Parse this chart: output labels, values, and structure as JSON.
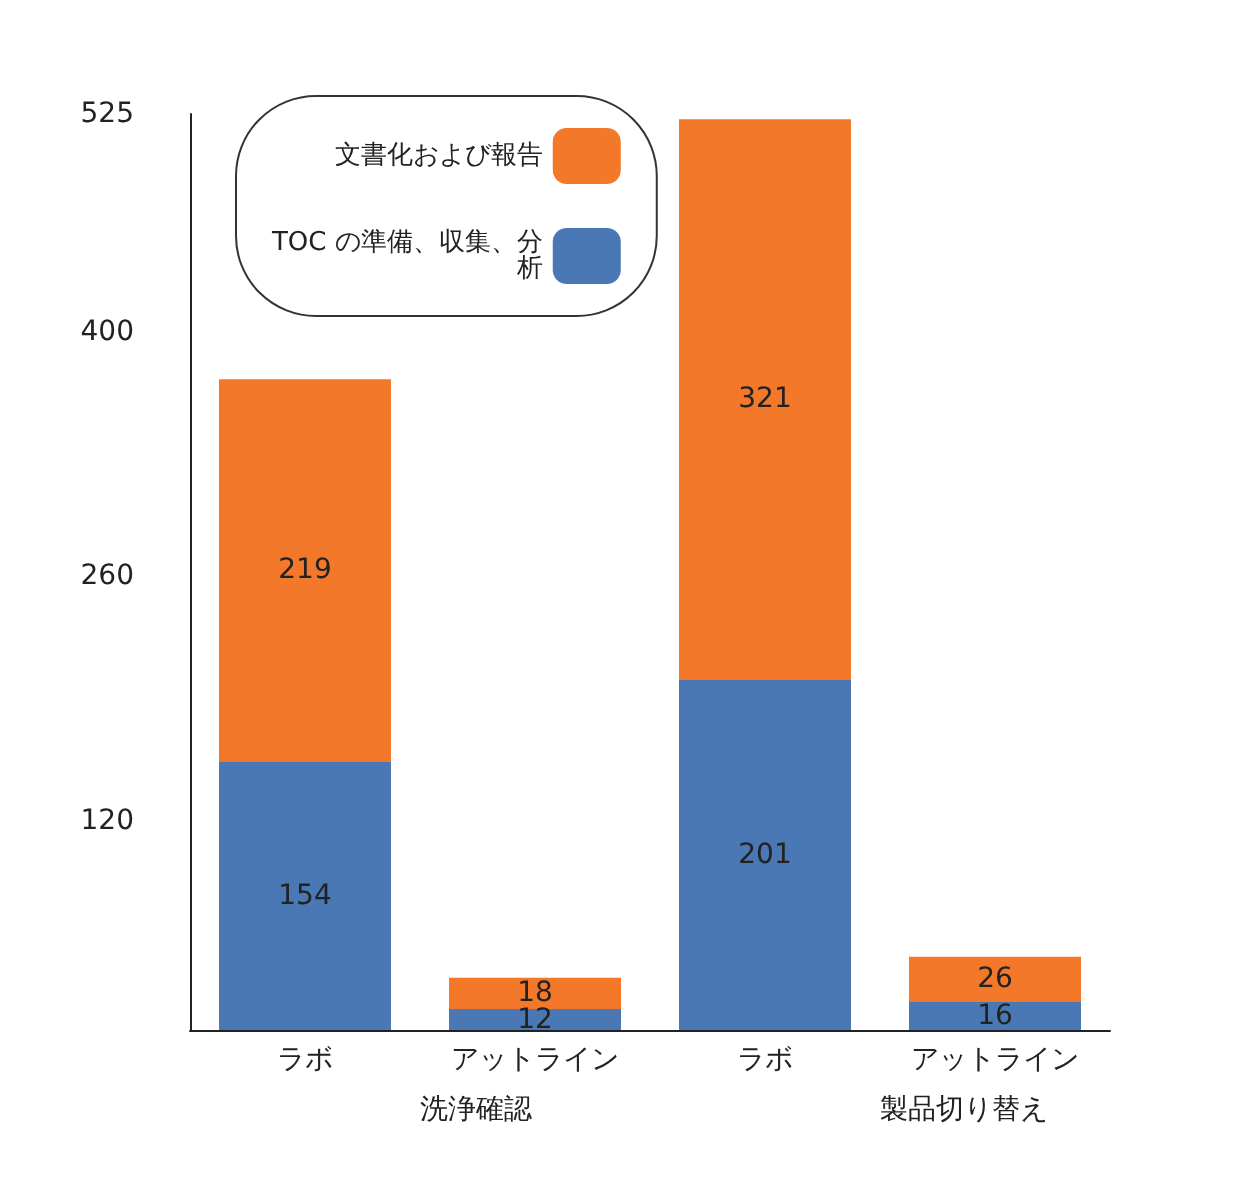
{
  "chart_data": {
    "type": "bar",
    "stacked": true,
    "categories": [
      "ラボ",
      "アットライン",
      "ラボ",
      "アットライン"
    ],
    "series": [
      {
        "name": "TOC の準備、収集、分析",
        "color": "#4a78b5",
        "values": [
          154,
          12,
          201,
          16
        ]
      },
      {
        "name": "文書化および報告",
        "color": "#f3782a",
        "values": [
          219,
          18,
          321,
          26
        ]
      }
    ],
    "ylim": [
      0,
      525
    ],
    "yticks": [
      120,
      260,
      400,
      525
    ],
    "annotations": [
      "洗浄確認",
      "製品切り替え"
    ],
    "data_labels": true,
    "grid": false,
    "legend": "top left"
  }
}
